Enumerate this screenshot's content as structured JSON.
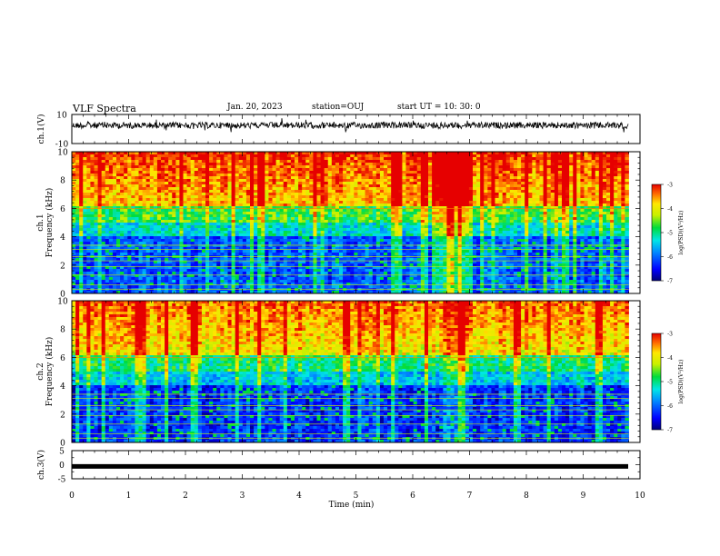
{
  "header": {
    "title": "VLF Spectra",
    "date": "Jan. 20, 2023",
    "station": "station=OUJ",
    "start_ut": "start  UT =   10: 30: 0"
  },
  "chart_data": [
    {
      "type": "line",
      "panel": "ch1-waveform",
      "ylabel": "ch.1(V)",
      "ylim": [
        -10,
        10
      ],
      "yticks": [
        "10",
        "-10"
      ],
      "xlim": [
        0,
        10
      ],
      "baseline": 2.5,
      "color": "#000000"
    },
    {
      "type": "heatmap",
      "panel": "ch1-spectrogram",
      "ylabel": "ch.1\nFrequency (kHz)",
      "ylim": [
        0,
        10
      ],
      "yticks": [
        "0",
        "2",
        "4",
        "6",
        "8",
        "10"
      ],
      "xlim": [
        0,
        10
      ],
      "data_end_min": 9.8,
      "colorbar": {
        "label": "log(PSD)(V²/Hz)",
        "range": [
          -7,
          -3
        ],
        "ticks": [
          "-3",
          "-4",
          "-5",
          "-6",
          "-7"
        ]
      }
    },
    {
      "type": "heatmap",
      "panel": "ch2-spectrogram",
      "ylabel": "ch.2\nFrequency (kHz)",
      "ylim": [
        0,
        10
      ],
      "yticks": [
        "0",
        "2",
        "4",
        "6",
        "8",
        "10"
      ],
      "xlim": [
        0,
        10
      ],
      "data_end_min": 9.8,
      "colorbar": {
        "label": "log(PSD)(V²/Hz)",
        "range": [
          -7,
          -3
        ],
        "ticks": [
          "-3",
          "-4",
          "-5",
          "-6",
          "-7"
        ]
      }
    },
    {
      "type": "line",
      "panel": "ch3-waveform",
      "ylabel": "ch.3(V)",
      "ylim": [
        -5,
        5
      ],
      "yticks": [
        "5",
        "0",
        "-5"
      ],
      "xlim": [
        0,
        10
      ],
      "baseline": -0.6,
      "color": "#000000"
    }
  ],
  "xaxis": {
    "label": "Time (min)",
    "ticks": [
      "0",
      "1",
      "2",
      "3",
      "4",
      "5",
      "6",
      "7",
      "8",
      "9",
      "10"
    ]
  }
}
